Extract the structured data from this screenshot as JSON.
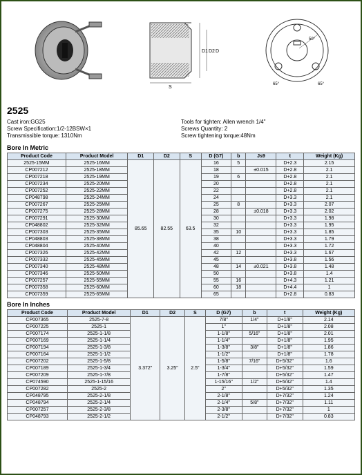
{
  "title": "2525",
  "specs_left": [
    "Cast iron:GG25",
    "Screw Specification:1/2-12BSW×1",
    "Transmissible torque: 1310Nm"
  ],
  "specs_right": [
    "Tools for tighten: Allen wrench 1/4\"",
    "Screws Quantity: 2",
    "Screw tightening torque:48Nm"
  ],
  "metric_title": "Bore In Metric",
  "inches_title": "Bore In Inches",
  "metric_headers": [
    "Product Code",
    "Product Model",
    "D1",
    "D2",
    "S",
    "D (G7)",
    "b",
    "Js9",
    "t",
    "Weight (Kg)"
  ],
  "inches_headers": [
    "Product Code",
    "Product Model",
    "D1",
    "D2",
    "S",
    "D (G7)",
    "b",
    "t",
    "Weight (Kg)"
  ],
  "metric_shared": {
    "D1": "85.65",
    "D2": "82.55",
    "S": "63.5"
  },
  "metric_rows": [
    {
      "code": "2525-15MM",
      "model": "2525-16MM",
      "d": "16",
      "b": "5",
      "js9": "",
      "t": "D+2.3",
      "w": "2.15"
    },
    {
      "code": "CP007212",
      "model": "2525-18MM",
      "d": "18",
      "b": "",
      "js9": "±0.015",
      "t": "D+2.8",
      "w": "2.1"
    },
    {
      "code": "CP007218",
      "model": "2525-19MM",
      "d": "19",
      "b": "6",
      "js9": "",
      "t": "D+2.8",
      "w": "2.1"
    },
    {
      "code": "CP007234",
      "model": "2525-20MM",
      "d": "20",
      "b": "",
      "js9": "",
      "t": "D+2.8",
      "w": "2.1"
    },
    {
      "code": "CP007252",
      "model": "2525-22MM",
      "d": "22",
      "b": "",
      "js9": "",
      "t": "D+2.8",
      "w": "2.1"
    },
    {
      "code": "CP048798",
      "model": "2525-24MM",
      "d": "24",
      "b": "",
      "js9": "",
      "t": "D+3.3",
      "w": "2.1"
    },
    {
      "code": "CP007267",
      "model": "2525-25MM",
      "d": "25",
      "b": "8",
      "js9": "",
      "t": "D+3.3",
      "w": "2.07"
    },
    {
      "code": "CP007275",
      "model": "2525-28MM",
      "d": "28",
      "b": "",
      "js9": "±0.018",
      "t": "D+3.3",
      "w": "2.02"
    },
    {
      "code": "CP007291",
      "model": "2525-30MM",
      "d": "30",
      "b": "",
      "js9": "",
      "t": "D+3.3",
      "w": "1.98"
    },
    {
      "code": "CP048802",
      "model": "2525-32MM",
      "d": "32",
      "b": "",
      "js9": "",
      "t": "D+3.3",
      "w": "1.95"
    },
    {
      "code": "CP007303",
      "model": "2525-35MM",
      "d": "35",
      "b": "10",
      "js9": "",
      "t": "D+3.3",
      "w": "1.85"
    },
    {
      "code": "CP048803",
      "model": "2525-38MM",
      "d": "38",
      "b": "",
      "js9": "",
      "t": "D+3.3",
      "w": "1.79"
    },
    {
      "code": "CP048804",
      "model": "2525-40MM",
      "d": "40",
      "b": "",
      "js9": "",
      "t": "D+3.3",
      "w": "1.72"
    },
    {
      "code": "CP007326",
      "model": "2525-42MM",
      "d": "42",
      "b": "12",
      "js9": "",
      "t": "D+3.3",
      "w": "1.67"
    },
    {
      "code": "CP007332",
      "model": "2525-45MM",
      "d": "45",
      "b": "",
      "js9": "",
      "t": "D+3.8",
      "w": "1.56"
    },
    {
      "code": "CP007340",
      "model": "2525-48MM",
      "d": "48",
      "b": "14",
      "js9": "±0.021",
      "t": "D+3.8",
      "w": "1.48"
    },
    {
      "code": "CP007346",
      "model": "2525-50MM",
      "d": "50",
      "b": "",
      "js9": "",
      "t": "D+3.8",
      "w": "1.4"
    },
    {
      "code": "CP007257",
      "model": "2525-55MM",
      "d": "55",
      "b": "16",
      "js9": "",
      "t": "D+4.3",
      "w": "1.21"
    },
    {
      "code": "CP007358",
      "model": "2525-60MM",
      "d": "60",
      "b": "18",
      "js9": "",
      "t": "D+4.4",
      "w": "1"
    },
    {
      "code": "CP007359",
      "model": "2525-65MM",
      "d": "65",
      "b": "",
      "js9": "",
      "t": "D+2.8",
      "w": "0.83"
    }
  ],
  "inches_shared": {
    "D1": "3.372\"",
    "D2": "3.25\"",
    "S": "2.5\""
  },
  "inches_rows": [
    {
      "code": "CP007365",
      "model": "2525-7-8",
      "d": "7/8\"",
      "b": "1/4\"",
      "t": "D+1/8\"",
      "w": "2.14"
    },
    {
      "code": "CP007225",
      "model": "2525-1",
      "d": "1\"",
      "b": "",
      "t": "D+1/8\"",
      "w": "2.08"
    },
    {
      "code": "CP007174",
      "model": "2525-1-1/8",
      "d": "1-1/8\"",
      "b": "5/16\"",
      "t": "D+1/8\"",
      "w": "2.01"
    },
    {
      "code": "CP007169",
      "model": "2525-1-1/4",
      "d": "1-1/4\"",
      "b": "",
      "t": "D+1/8\"",
      "w": "1.95"
    },
    {
      "code": "CP007194",
      "model": "2525-1-3/8",
      "d": "1-3/8\"",
      "b": "3/8\"",
      "t": "D+1/8\"",
      "w": "1.86"
    },
    {
      "code": "CP007164",
      "model": "2525-1-1/2",
      "d": "1-1/2\"",
      "b": "",
      "t": "D+1/8\"",
      "w": "1.78"
    },
    {
      "code": "CP007202",
      "model": "2525-1-5/8",
      "d": "1-5/8\"",
      "b": "7/16\"",
      "t": "D+5/32\"",
      "w": "1.6"
    },
    {
      "code": "CP007189",
      "model": "2525-1-3/4",
      "d": "1-3/4\"",
      "b": "",
      "t": "D+5/32\"",
      "w": "1.59"
    },
    {
      "code": "CP007209",
      "model": "2525-1-7/8",
      "d": "1-7/8\"",
      "b": "",
      "t": "D+5/32\"",
      "w": "1.47"
    },
    {
      "code": "CP074590",
      "model": "2525-1-15/16",
      "d": "1-15/16\"",
      "b": "1/2\"",
      "t": "D+5/32\"",
      "w": "1.4"
    },
    {
      "code": "CP007282",
      "model": "2525-2",
      "d": "2\"",
      "b": "",
      "t": "D+5/32\"",
      "w": "1.35"
    },
    {
      "code": "CP048795",
      "model": "2525-2-1/8",
      "d": "2-1/8\"",
      "b": "",
      "t": "D+7/32\"",
      "w": "1.24"
    },
    {
      "code": "CP048794",
      "model": "2525-2-1/4",
      "d": "2-1/4\"",
      "b": "5/8\"",
      "t": "D+7/32\"",
      "w": "1.11"
    },
    {
      "code": "CP007257",
      "model": "2525-2-3/8",
      "d": "2-3/8\"",
      "b": "",
      "t": "D+7/32\"",
      "w": "1"
    },
    {
      "code": "CP048793",
      "model": "2525-2-1/2",
      "d": "2-1/2\"",
      "b": "",
      "t": "D+7/32\"",
      "w": "0.83"
    }
  ]
}
